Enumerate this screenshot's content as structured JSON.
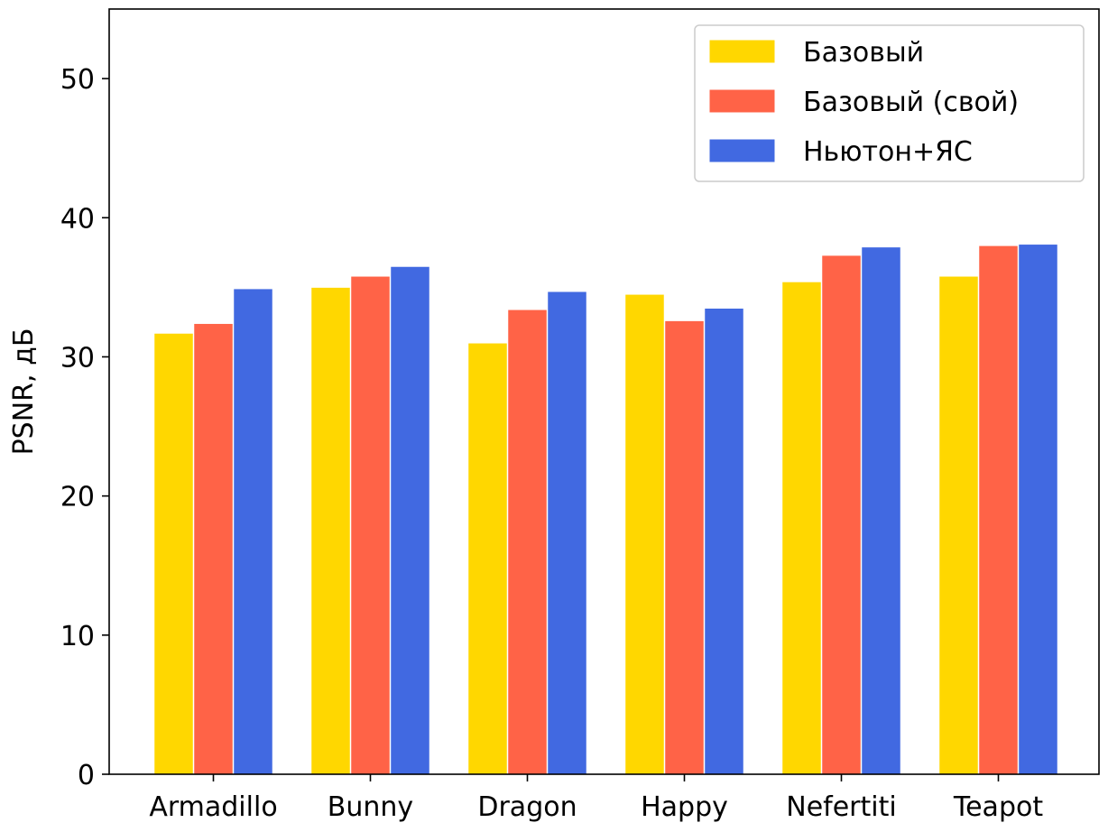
{
  "chart_data": {
    "type": "bar",
    "title": "",
    "xlabel": "",
    "ylabel": "PSNR, дБ",
    "categories": [
      "Armadillo",
      "Bunny",
      "Dragon",
      "Happy",
      "Nefertiti",
      "Teapot"
    ],
    "ylim": [
      0,
      55
    ],
    "yticks": [
      0,
      10,
      20,
      30,
      40,
      50
    ],
    "ytick_labels": [
      "0",
      "10",
      "20",
      "30",
      "40",
      "50"
    ],
    "grid": false,
    "legend_position": "top-right",
    "series": [
      {
        "name": "Базовый",
        "color": "#FFD700",
        "values": [
          31.7,
          35.0,
          31.0,
          34.5,
          35.4,
          35.8
        ]
      },
      {
        "name": "Базовый (свой)",
        "color": "#FF6347",
        "values": [
          32.4,
          35.8,
          33.4,
          32.6,
          37.3,
          38.0
        ]
      },
      {
        "name": "Ньютон+ЯС",
        "color": "#4169E1",
        "values": [
          34.9,
          36.5,
          34.7,
          33.5,
          37.9,
          38.1
        ]
      }
    ]
  }
}
